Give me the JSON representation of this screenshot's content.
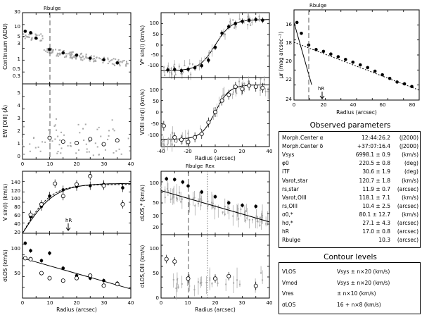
{
  "figure_labels": {
    "rbulge_marker": "Rbulge",
    "rex_marker": "Rex",
    "hr_marker": "hR",
    "radius_axis": "Radius (arcsec)"
  },
  "chart_data": [
    {
      "id": "continuum",
      "type": "scatter",
      "ylabel": "Continuum (ADU)",
      "xlim": [
        0,
        40
      ],
      "ylim": [
        0.2,
        40
      ],
      "yscale": "log",
      "yticks": [
        "0.3",
        "0.5",
        "1",
        "3",
        "5",
        "10",
        "30"
      ],
      "series": [
        {
          "name": "profile",
          "marker": "filled-circle",
          "x": [
            1,
            3,
            5,
            10,
            15,
            20,
            25,
            30,
            35
          ],
          "y": [
            10,
            9,
            6,
            2.6,
            2.0,
            1.7,
            1.35,
            1.2,
            0.95
          ]
        },
        {
          "name": "map",
          "marker": "gray-dot"
        }
      ]
    },
    {
      "id": "ew_oiii",
      "type": "scatter",
      "ylabel": "EW [OIII] (Å)",
      "xlim": [
        0,
        40
      ],
      "ylim": [
        0,
        6
      ],
      "yticks": [
        "0",
        "1",
        "2",
        "3",
        "4",
        "5"
      ],
      "series": [
        {
          "name": "profile",
          "marker": "open-circle",
          "x": [
            10,
            15,
            20,
            25,
            30,
            35
          ],
          "y": [
            1.7,
            1.4,
            1.3,
            1.6,
            1.2,
            1.5
          ]
        },
        {
          "name": "map",
          "marker": "gray-dot"
        }
      ]
    },
    {
      "id": "vstar",
      "type": "scatter",
      "ylabel": "V* sin(i) (km/s)",
      "xlim": [
        -40,
        40
      ],
      "ylim": [
        -150,
        150
      ],
      "yticks": [
        "-100",
        "-50",
        "0",
        "50",
        "100"
      ],
      "xticks": [
        "-40",
        "-20",
        "0",
        "20",
        "40"
      ],
      "series": [
        {
          "name": "stars",
          "marker": "filled-circle",
          "x": [
            -35,
            -30,
            -25,
            -20,
            -15,
            -10,
            -5,
            0,
            5,
            10,
            15,
            20,
            25,
            30,
            35
          ],
          "y": [
            -115,
            -113,
            -118,
            -112,
            -105,
            -95,
            -70,
            -10,
            55,
            85,
            100,
            110,
            115,
            118,
            115
          ]
        }
      ]
    },
    {
      "id": "vgas",
      "type": "scatter",
      "ylabel": "VOIII sin(i) (km/s)",
      "xlim": [
        -40,
        40
      ],
      "ylim": [
        -150,
        150
      ],
      "yticks": [
        "-100",
        "-50",
        "0",
        "50",
        "100"
      ],
      "xticks": [
        "-40",
        "-20",
        "0",
        "20",
        "40"
      ],
      "series": [
        {
          "name": "gas",
          "marker": "open-circle",
          "x": [
            -38,
            -30,
            -25,
            -20,
            -15,
            -10,
            -5,
            0,
            5,
            10,
            15,
            20,
            25,
            30,
            35
          ],
          "y": [
            -60,
            -110,
            -120,
            -130,
            -110,
            -95,
            -45,
            0,
            50,
            75,
            110,
            100,
            115,
            110,
            105
          ]
        }
      ]
    },
    {
      "id": "mu_r",
      "type": "scatter",
      "ylabel": "μr (mag arcsec⁻²)",
      "xlim": [
        0,
        85
      ],
      "ylim": [
        24,
        14
      ],
      "yticks": [
        "16",
        "18",
        "20",
        "22",
        "24"
      ],
      "xticks": [
        "0",
        "20",
        "40",
        "60",
        "80"
      ],
      "series": [
        {
          "name": "profile",
          "marker": "filled-circle",
          "x": [
            2,
            5,
            10,
            15,
            20,
            25,
            30,
            35,
            40,
            45,
            50,
            55,
            60,
            65,
            70,
            75,
            80
          ],
          "y": [
            15.4,
            16.6,
            17.9,
            18.4,
            18.6,
            18.9,
            19.2,
            19.5,
            19.8,
            20.1,
            20.4,
            20.8,
            21.2,
            21.6,
            22.0,
            22.2,
            22.5
          ]
        }
      ]
    },
    {
      "id": "vcirc",
      "type": "scatter",
      "ylabel": "V sin(i) (km/s)",
      "xlim": [
        0,
        40
      ],
      "ylim": [
        0,
        150
      ],
      "yticks": [
        "0",
        "20",
        "40",
        "60",
        "80",
        "100",
        "120",
        "140"
      ],
      "xticks": [
        "0",
        "10",
        "20",
        "30",
        "40"
      ],
      "series": [
        {
          "name": "stars",
          "marker": "filled-circle",
          "x": [
            3,
            7,
            10,
            15,
            20,
            25,
            30,
            37
          ],
          "y": [
            40,
            65,
            90,
            105,
            113,
            115,
            118,
            110
          ]
        },
        {
          "name": "gas",
          "marker": "open-circle",
          "x": [
            3,
            7,
            12,
            15,
            20,
            25,
            30,
            37
          ],
          "y": [
            45,
            70,
            120,
            90,
            118,
            138,
            115,
            70
          ]
        }
      ]
    },
    {
      "id": "sigma_los",
      "type": "scatter",
      "ylabel": "σLOS (km/s)",
      "xlim": [
        0,
        40
      ],
      "ylim": [
        0,
        130
      ],
      "yticks": [
        "50",
        "100"
      ],
      "xticks": [
        "0",
        "10",
        "20",
        "30",
        "40"
      ],
      "series": [
        {
          "name": "stars",
          "marker": "filled-circle",
          "x": [
            1,
            3,
            7,
            10,
            15,
            20,
            25,
            30,
            35
          ],
          "y": [
            110,
            95,
            75,
            90,
            60,
            45,
            40,
            35,
            30
          ]
        },
        {
          "name": "gas",
          "marker": "open-circle",
          "x": [
            1,
            3,
            7,
            10,
            15,
            20,
            25,
            30,
            35
          ],
          "y": [
            80,
            78,
            50,
            40,
            35,
            40,
            45,
            25,
            28
          ]
        }
      ]
    },
    {
      "id": "sigma_star",
      "type": "scatter",
      "ylabel": "σLOS,* (km/s)",
      "xlim": [
        0,
        40
      ],
      "ylim": [
        10,
        200
      ],
      "yscale": "log",
      "yticks": [
        "20",
        "30",
        "50",
        "100"
      ],
      "xticks": [
        "0",
        "10",
        "20",
        "30",
        "40"
      ],
      "series": [
        {
          "name": "stars",
          "marker": "filled-circle",
          "x": [
            2,
            5,
            8,
            10,
            15,
            20,
            25,
            30,
            35
          ],
          "y": [
            140,
            135,
            120,
            100,
            75,
            60,
            45,
            40,
            38
          ]
        }
      ]
    },
    {
      "id": "sigma_oiii",
      "type": "scatter",
      "ylabel": "σLOS,OIII (km/s)",
      "xlim": [
        0,
        40
      ],
      "ylim": [
        0,
        130
      ],
      "yticks": [
        "0",
        "50",
        "100"
      ],
      "xticks": [
        "0",
        "10",
        "20",
        "30",
        "40"
      ],
      "series": [
        {
          "name": "gas",
          "marker": "open-circle",
          "x": [
            2,
            5,
            10,
            20,
            25,
            35
          ],
          "y": [
            80,
            75,
            40,
            40,
            45,
            25
          ]
        }
      ]
    }
  ],
  "params": {
    "title": "Observed parameters",
    "rows": [
      {
        "name": "Morph.Center α",
        "value": "12:44:26.2",
        "unit": "(J2000)"
      },
      {
        "name": "Morph.Center δ",
        "value": "+37:07:16.4",
        "unit": "(J2000)"
      },
      {
        "name": "Vsys",
        "value": "6998.1 ± 0.9",
        "unit": "(km/s)"
      },
      {
        "name": "φ0",
        "value": "220.5 ± 0.8",
        "unit": "(deg)"
      },
      {
        "name": "iTF",
        "value": "30.6 ± 1.9",
        "unit": "(deg)"
      },
      {
        "name": "Varot,star",
        "value": "120.7 ± 1.8",
        "unit": "(km/s)"
      },
      {
        "name": "rs,star",
        "value": "11.9 ± 0.7",
        "unit": "(arcsec)"
      },
      {
        "name": "Varot,OIII",
        "value": "118.1 ± 7.1",
        "unit": "(km/s)"
      },
      {
        "name": "rs,OIII",
        "value": "10.4 ± 2.5",
        "unit": "(arcsec)"
      },
      {
        "name": "σ0,*",
        "value": "80.1 ± 12.7",
        "unit": "(km/s)"
      },
      {
        "name": "hσ,*",
        "value": "27.1 ± 4.3",
        "unit": "(arcsec)"
      },
      {
        "name": "hR",
        "value": "17.0 ± 0.8",
        "unit": "(arcsec)"
      },
      {
        "name": "Rbulge",
        "value": "10.3",
        "unit": "(arcsec)"
      }
    ]
  },
  "contours": {
    "title": "Contour levels",
    "rows": [
      {
        "name": "VLOS",
        "value": "Vsys ± n×20  (km/s)"
      },
      {
        "name": "Vmod",
        "value": "Vsys ± n×20  (km/s)"
      },
      {
        "name": "Vres",
        "value": "± n×10  (km/s)"
      },
      {
        "name": "σLOS",
        "value": "16 + n×8  (km/s)"
      }
    ]
  }
}
